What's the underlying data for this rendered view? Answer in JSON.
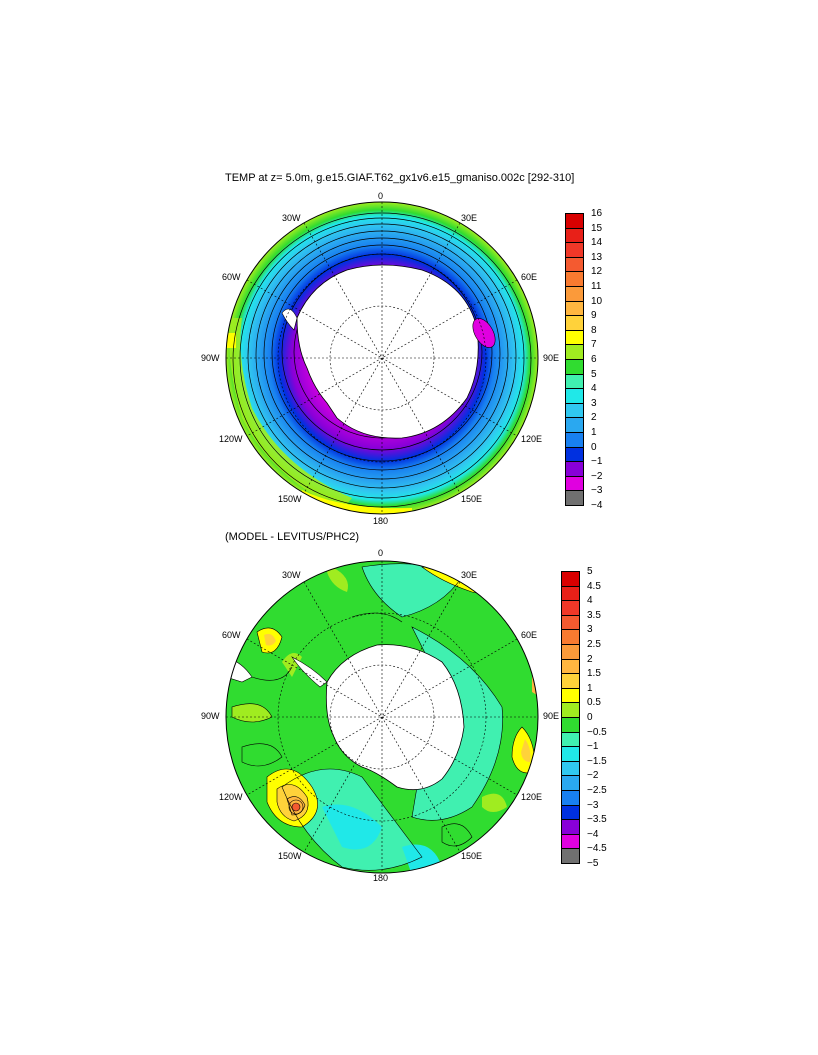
{
  "maps": [
    {
      "title": "TEMP at z=   5.0m, g.e15.GIAF.T62_gx1v6.e15_gmaniso.002c [292-310]",
      "lon_labels": {
        "n": "0",
        "nne": "30E",
        "ene": "60E",
        "e": "90E",
        "ese": "120E",
        "sse": "150E",
        "s": "180",
        "ssw": "150W",
        "wsw": "120W",
        "w": "90W",
        "wnw": "60W",
        "nnw": "30W"
      },
      "colorbar": {
        "labels": [
          "16",
          "15",
          "14",
          "13",
          "12",
          "11",
          "10",
          "9",
          "8",
          "7",
          "6",
          "5",
          "4",
          "3",
          "2",
          "1",
          "0",
          "−1",
          "−2",
          "−3",
          "−4"
        ],
        "colors": [
          "#d80000",
          "#e82018",
          "#f03828",
          "#f45a30",
          "#f87a30",
          "#fb9a3a",
          "#ffb640",
          "#ffd23a",
          "#ffff00",
          "#a0ec20",
          "#30dc30",
          "#40f0b0",
          "#20e8e8",
          "#30c8f0",
          "#2aa8f0",
          "#1880f0",
          "#0030e0",
          "#8800d8",
          "#e000e0",
          "#d0d0d0",
          "#707070"
        ]
      }
    },
    {
      "title": "(MODEL - LEVITUS/PHC2)",
      "lon_labels": {
        "n": "0",
        "nne": "30E",
        "ene": "60E",
        "e": "90E",
        "ese": "120E",
        "sse": "150E",
        "s": "180",
        "ssw": "150W",
        "wsw": "120W",
        "w": "90W",
        "wnw": "60W",
        "nnw": "30W"
      },
      "colorbar": {
        "labels": [
          "5",
          "4.5",
          "4",
          "3.5",
          "3",
          "2.5",
          "2",
          "1.5",
          "1",
          "0.5",
          "0",
          "−0.5",
          "−1",
          "−1.5",
          "−2",
          "−2.5",
          "−3",
          "−3.5",
          "−4",
          "−4.5",
          "−5"
        ],
        "colors": [
          "#d80000",
          "#e82018",
          "#f03828",
          "#f45a30",
          "#f87a30",
          "#fb9a3a",
          "#ffb640",
          "#ffd23a",
          "#ffff00",
          "#a0ec20",
          "#30dc30",
          "#40f0b0",
          "#20e8e8",
          "#30c8f0",
          "#2aa8f0",
          "#1880f0",
          "#0030e0",
          "#8800d8",
          "#e000e0",
          "#d0d0d0",
          "#707070"
        ]
      }
    }
  ]
}
